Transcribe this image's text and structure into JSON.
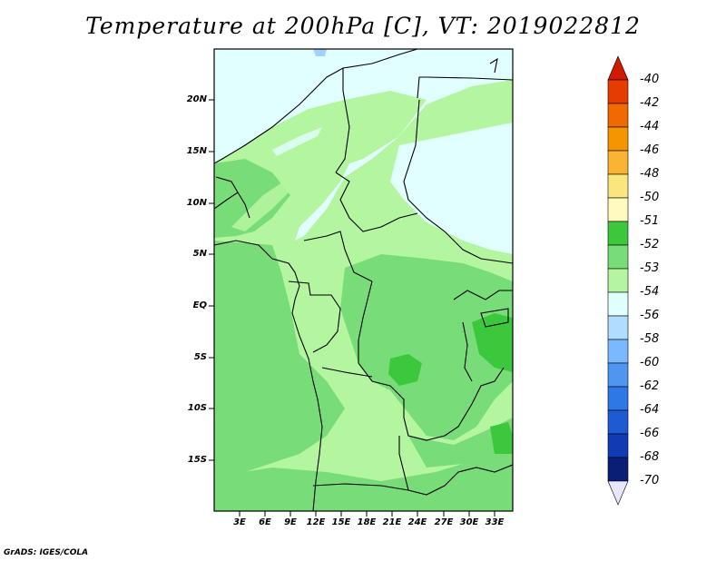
{
  "title": "Temperature at 200hPa [C], VT: 2019022812",
  "credit": "GrADS: IGES/COLA",
  "lat_labels": [
    "20N",
    "15N",
    "10N",
    "5N",
    "EQ",
    "5S",
    "10S",
    "15S"
  ],
  "lon_labels": [
    "3E",
    "6E",
    "9E",
    "12E",
    "15E",
    "18E",
    "21E",
    "24E",
    "27E",
    "30E",
    "33E"
  ],
  "colorbar": {
    "labels": [
      "-40",
      "-42",
      "-44",
      "-46",
      "-48",
      "-50",
      "-51",
      "-52",
      "-53",
      "-54",
      "-56",
      "-58",
      "-60",
      "-62",
      "-64",
      "-66",
      "-68",
      "-70"
    ],
    "colors": [
      "#d21a00",
      "#e63c00",
      "#f06a00",
      "#f59600",
      "#f8b432",
      "#fae67d",
      "#fffbc0",
      "#3cc83c",
      "#78dc78",
      "#b4f5a0",
      "#e1ffff",
      "#afdcff",
      "#7ab9ff",
      "#5096f0",
      "#2d78e6",
      "#1e5ad2",
      "#0f3cb4",
      "#0a1e78",
      "#e6e6ff"
    ]
  },
  "map": {
    "region": "Central Africa",
    "variable": "Temperature at 200hPa",
    "units": "C",
    "valid_time": "2019022812",
    "lon_range": [
      0,
      35
    ],
    "lat_range": [
      -20,
      25
    ]
  }
}
